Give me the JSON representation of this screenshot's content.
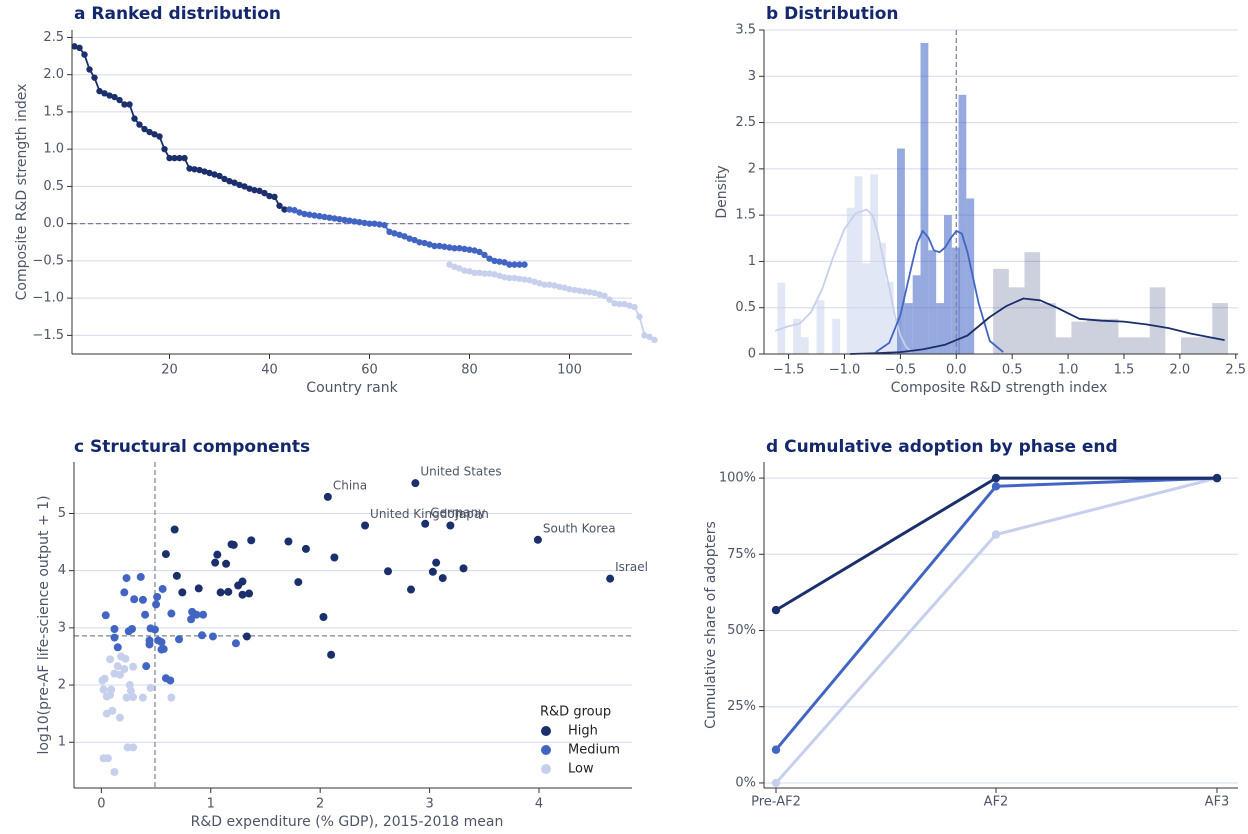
{
  "colors": {
    "high": "#1a2f6b",
    "medium": "#4265c4",
    "low": "#c6d0ec",
    "grid": "#d4d8ee",
    "refline": "#7c8092",
    "title": "#13286d",
    "text": "#4d5566"
  },
  "titles": {
    "a": "a  Ranked distribution",
    "b": "b  Distribution",
    "c": "c  Structural components",
    "d": "d  Cumulative adoption by phase end"
  },
  "chart_data": [
    {
      "panel": "a",
      "type": "line",
      "title": "a  Ranked distribution",
      "xlabel": "Country rank",
      "ylabel": "Composite R&D strength index",
      "xlim": [
        0.5,
        112.5
      ],
      "ylim": [
        -1.75,
        2.6
      ],
      "xticks": [
        20,
        40,
        60,
        80,
        100
      ],
      "yticks": [
        -1.5,
        -1.0,
        -0.5,
        0.0,
        0.5,
        1.0,
        1.5,
        2.0,
        2.5
      ],
      "ytick_labels": [
        "−1.5",
        "−1.0",
        "−0.5",
        "0.0",
        "0.5",
        "1.0",
        "1.5",
        "2.0",
        "2.5"
      ],
      "reference_y": 0,
      "grid": "horizontal",
      "series": [
        {
          "group": "high",
          "x_start": 1,
          "values": [
            2.38,
            2.36,
            2.27,
            2.07,
            1.96,
            1.78,
            1.75,
            1.72,
            1.7,
            1.66,
            1.6,
            1.6,
            1.41,
            1.33,
            1.27,
            1.23,
            1.2,
            1.17,
            1.0,
            0.88,
            0.88,
            0.88,
            0.88,
            0.74,
            0.73,
            0.72,
            0.7,
            0.68,
            0.66,
            0.64,
            0.6,
            0.57,
            0.55,
            0.52,
            0.5,
            0.47,
            0.45,
            0.44,
            0.41,
            0.37,
            0.36,
            0.24,
            0.19
          ]
        },
        {
          "group": "medium",
          "x_start": 44,
          "values": [
            0.19,
            0.18,
            0.15,
            0.13,
            0.12,
            0.11,
            0.1,
            0.09,
            0.08,
            0.07,
            0.06,
            0.05,
            0.04,
            0.03,
            0.02,
            0.01,
            0.0,
            0.0,
            -0.01,
            -0.02,
            -0.11,
            -0.13,
            -0.15,
            -0.17,
            -0.2,
            -0.22,
            -0.25,
            -0.26,
            -0.28,
            -0.3,
            -0.3,
            -0.31,
            -0.32,
            -0.33,
            -0.33,
            -0.34,
            -0.35,
            -0.36,
            -0.38,
            -0.42,
            -0.47,
            -0.5,
            -0.51,
            -0.52,
            -0.55,
            -0.55,
            -0.55,
            -0.55
          ]
        },
        {
          "group": "low",
          "x_start": 76,
          "values": [
            -0.55,
            -0.58,
            -0.6,
            -0.63,
            -0.64,
            -0.66,
            -0.66,
            -0.67,
            -0.67,
            -0.68,
            -0.7,
            -0.72,
            -0.73,
            -0.73,
            -0.74,
            -0.75,
            -0.76,
            -0.78,
            -0.8,
            -0.82,
            -0.82,
            -0.83,
            -0.85,
            -0.86,
            -0.88,
            -0.89,
            -0.9,
            -0.91,
            -0.92,
            -0.93,
            -0.95,
            -0.97,
            -1.02,
            -1.07,
            -1.08,
            -1.08,
            -1.1,
            -1.12,
            -1.25,
            -1.5,
            -1.52,
            -1.56
          ]
        }
      ]
    },
    {
      "panel": "b",
      "type": "bar",
      "title": "b  Distribution",
      "xlabel": "Composite R&D strength index",
      "ylabel": "Density",
      "xlim": [
        -1.72,
        2.52
      ],
      "ylim": [
        0,
        3.5
      ],
      "xticks": [
        -1.5,
        -1.0,
        -0.5,
        0.0,
        0.5,
        1.0,
        1.5,
        2.0,
        2.5
      ],
      "xtick_labels": [
        "−1.5",
        "−1.0",
        "−0.5",
        "0.0",
        "0.5",
        "1.0",
        "1.5",
        "2.0",
        "2.5"
      ],
      "yticks": [
        0.0,
        0.5,
        1.0,
        1.5,
        2.0,
        2.5,
        3.0,
        3.5
      ],
      "reference_x": 0,
      "grid": "horizontal",
      "histograms": [
        {
          "group": "low",
          "bin_width": 0.07,
          "bars": [
            [
              -1.6,
              0.77
            ],
            [
              -1.46,
              0.38
            ],
            [
              -1.39,
              0.18
            ],
            [
              -1.25,
              0.58
            ],
            [
              -1.11,
              0.38
            ],
            [
              -0.98,
              1.58
            ],
            [
              -0.91,
              1.92
            ],
            [
              -0.84,
              0.98
            ],
            [
              -0.77,
              1.94
            ],
            [
              -0.7,
              1.2
            ],
            [
              -0.63,
              0.78
            ],
            [
              -0.56,
              0.38
            ]
          ]
        },
        {
          "group": "medium",
          "bin_width": 0.07,
          "bars": [
            [
              -0.53,
              2.22
            ],
            [
              -0.46,
              0.55
            ],
            [
              -0.39,
              0.85
            ],
            [
              -0.32,
              3.36
            ],
            [
              -0.25,
              1.12
            ],
            [
              -0.18,
              0.55
            ],
            [
              -0.11,
              1.5
            ],
            [
              -0.04,
              1.15
            ],
            [
              0.02,
              2.8
            ],
            [
              0.09,
              1.68
            ]
          ]
        },
        {
          "group": "high",
          "bin_width": 0.14,
          "bars": [
            [
              0.33,
              0.92
            ],
            [
              0.47,
              0.72
            ],
            [
              0.61,
              1.1
            ],
            [
              0.75,
              0.55
            ],
            [
              0.89,
              0.18
            ],
            [
              1.03,
              0.35
            ],
            [
              1.17,
              0.38
            ],
            [
              1.31,
              0.38
            ],
            [
              1.45,
              0.18
            ],
            [
              1.59,
              0.18
            ],
            [
              1.73,
              0.72
            ],
            [
              2.01,
              0.18
            ],
            [
              2.15,
              0.18
            ],
            [
              2.29,
              0.55
            ]
          ]
        }
      ],
      "kde": [
        {
          "group": "low",
          "x": [
            -1.62,
            -1.5,
            -1.4,
            -1.3,
            -1.2,
            -1.1,
            -1.0,
            -0.9,
            -0.8,
            -0.75,
            -0.7,
            -0.6,
            -0.55,
            -0.5,
            -0.45,
            -0.4
          ],
          "y": [
            0.25,
            0.3,
            0.33,
            0.45,
            0.7,
            1.05,
            1.35,
            1.52,
            1.56,
            1.5,
            1.3,
            0.72,
            0.42,
            0.2,
            0.08,
            0.02
          ]
        },
        {
          "group": "medium",
          "x": [
            -0.72,
            -0.6,
            -0.5,
            -0.4,
            -0.35,
            -0.3,
            -0.25,
            -0.2,
            -0.15,
            -0.1,
            -0.05,
            0.0,
            0.05,
            0.1,
            0.2,
            0.3,
            0.42
          ],
          "y": [
            0.02,
            0.12,
            0.42,
            0.95,
            1.2,
            1.33,
            1.26,
            1.12,
            1.1,
            1.15,
            1.25,
            1.33,
            1.3,
            1.1,
            0.55,
            0.14,
            0.02
          ]
        },
        {
          "group": "high",
          "x": [
            -0.95,
            -0.7,
            -0.5,
            -0.3,
            -0.1,
            0.1,
            0.3,
            0.45,
            0.6,
            0.75,
            0.9,
            1.1,
            1.3,
            1.5,
            1.7,
            1.9,
            2.1,
            2.4
          ],
          "y": [
            0.0,
            0.01,
            0.02,
            0.05,
            0.1,
            0.2,
            0.4,
            0.52,
            0.6,
            0.58,
            0.5,
            0.38,
            0.36,
            0.35,
            0.32,
            0.28,
            0.22,
            0.15
          ]
        }
      ]
    },
    {
      "panel": "c",
      "type": "scatter",
      "title": "c  Structural components",
      "xlabel": "R&D expenditure (% GDP), 2015-2018 mean",
      "ylabel": "log10(pre-AF life-science output + 1)",
      "xlim": [
        -0.25,
        4.85
      ],
      "ylim": [
        0.2,
        5.9
      ],
      "xticks": [
        0,
        1,
        2,
        3,
        4
      ],
      "yticks": [
        1,
        2,
        3,
        4,
        5
      ],
      "reference_x": 0.49,
      "reference_y": 2.86,
      "grid": "horizontal",
      "legend": {
        "title": "R&D group",
        "placement": "lower-right",
        "entries": [
          {
            "group": "high",
            "label": "High"
          },
          {
            "group": "medium",
            "label": "Medium"
          },
          {
            "group": "low",
            "label": "Low"
          }
        ]
      },
      "annotations": [
        {
          "text": "United States",
          "x": 2.87,
          "y": 5.53
        },
        {
          "text": "China",
          "x": 2.07,
          "y": 5.29
        },
        {
          "text": "United Kingdom",
          "x": 2.41,
          "y": 4.79
        },
        {
          "text": "Germany",
          "x": 2.96,
          "y": 4.82
        },
        {
          "text": "Japan",
          "x": 3.19,
          "y": 4.79
        },
        {
          "text": "South Korea",
          "x": 3.99,
          "y": 4.54
        },
        {
          "text": "Israel",
          "x": 4.65,
          "y": 3.86
        }
      ],
      "series": [
        {
          "group": "high",
          "points": [
            [
              2.87,
              5.53
            ],
            [
              2.07,
              5.29
            ],
            [
              2.41,
              4.79
            ],
            [
              2.96,
              4.82
            ],
            [
              3.19,
              4.79
            ],
            [
              3.99,
              4.54
            ],
            [
              4.65,
              3.86
            ],
            [
              0.67,
              4.72
            ],
            [
              0.59,
              4.29
            ],
            [
              1.37,
              4.53
            ],
            [
              1.21,
              4.45
            ],
            [
              1.19,
              4.46
            ],
            [
              1.71,
              4.51
            ],
            [
              1.87,
              4.38
            ],
            [
              2.13,
              4.23
            ],
            [
              1.06,
              4.28
            ],
            [
              1.04,
              4.14
            ],
            [
              1.14,
              4.12
            ],
            [
              0.69,
              3.91
            ],
            [
              0.89,
              3.69
            ],
            [
              0.74,
              3.62
            ],
            [
              1.09,
              3.62
            ],
            [
              1.16,
              3.63
            ],
            [
              1.25,
              3.74
            ],
            [
              1.29,
              3.81
            ],
            [
              1.29,
              3.58
            ],
            [
              1.35,
              3.6
            ],
            [
              1.8,
              3.8
            ],
            [
              2.62,
              3.99
            ],
            [
              2.83,
              3.67
            ],
            [
              3.03,
              3.98
            ],
            [
              3.06,
              4.14
            ],
            [
              3.12,
              3.87
            ],
            [
              3.31,
              4.04
            ],
            [
              2.03,
              3.19
            ],
            [
              1.33,
              2.85
            ],
            [
              2.1,
              2.53
            ]
          ]
        },
        {
          "group": "medium",
          "points": [
            [
              0.04,
              3.22
            ],
            [
              0.12,
              2.98
            ],
            [
              0.12,
              2.83
            ],
            [
              0.15,
              2.66
            ],
            [
              0.23,
              3.87
            ],
            [
              0.21,
              3.62
            ],
            [
              0.3,
              3.5
            ],
            [
              0.36,
              3.89
            ],
            [
              0.38,
              3.49
            ],
            [
              0.4,
              3.23
            ],
            [
              0.25,
              2.94
            ],
            [
              0.28,
              2.98
            ],
            [
              0.45,
              2.99
            ],
            [
              0.49,
              2.97
            ],
            [
              0.44,
              2.78
            ],
            [
              0.44,
              2.71
            ],
            [
              0.41,
              2.33
            ],
            [
              0.5,
              3.41
            ],
            [
              0.51,
              3.54
            ],
            [
              0.56,
              3.68
            ],
            [
              0.52,
              2.78
            ],
            [
              0.55,
              2.75
            ],
            [
              0.55,
              2.62
            ],
            [
              0.57,
              2.63
            ],
            [
              0.64,
              3.25
            ],
            [
              0.59,
              2.12
            ],
            [
              0.63,
              2.08
            ],
            [
              0.71,
              2.8
            ],
            [
              0.82,
              3.15
            ],
            [
              0.83,
              3.28
            ],
            [
              0.87,
              3.23
            ],
            [
              0.93,
              3.23
            ],
            [
              0.92,
              2.87
            ],
            [
              1.02,
              2.85
            ],
            [
              1.23,
              2.73
            ]
          ]
        },
        {
          "group": "low",
          "points": [
            [
              0.01,
              2.08
            ],
            [
              0.03,
              2.11
            ],
            [
              0.02,
              1.92
            ],
            [
              0.05,
              1.8
            ],
            [
              0.08,
              1.83
            ],
            [
              0.09,
              1.92
            ],
            [
              0.12,
              2.2
            ],
            [
              0.17,
              2.18
            ],
            [
              0.15,
              2.33
            ],
            [
              0.18,
              2.5
            ],
            [
              0.21,
              2.28
            ],
            [
              0.22,
              2.46
            ],
            [
              0.08,
              2.45
            ],
            [
              0.05,
              1.5
            ],
            [
              0.1,
              1.55
            ],
            [
              0.17,
              1.43
            ],
            [
              0.23,
              1.78
            ],
            [
              0.27,
              1.9
            ],
            [
              0.29,
              1.79
            ],
            [
              0.26,
              2.0
            ],
            [
              0.29,
              2.32
            ],
            [
              0.38,
              1.78
            ],
            [
              0.45,
              1.95
            ],
            [
              0.64,
              1.78
            ],
            [
              0.02,
              0.72
            ],
            [
              0.06,
              0.72
            ],
            [
              0.12,
              0.48
            ],
            [
              0.24,
              0.91
            ],
            [
              0.29,
              0.91
            ]
          ]
        }
      ]
    },
    {
      "panel": "d",
      "type": "line",
      "title": "d  Cumulative adoption by phase end",
      "ylabel": "Cumulative share of adopters",
      "categories": [
        "Pre-AF2",
        "AF2",
        "AF3"
      ],
      "yticks": [
        0,
        25,
        50,
        75,
        100
      ],
      "ytick_labels": [
        "0%",
        "25%",
        "50%",
        "75%",
        "100%"
      ],
      "ylim": [
        -1,
        102
      ],
      "grid": "horizontal",
      "series": [
        {
          "group": "high",
          "values": [
            56.7,
            100,
            100
          ]
        },
        {
          "group": "medium",
          "values": [
            10.9,
            97.3,
            100
          ]
        },
        {
          "group": "low",
          "values": [
            0,
            81.5,
            100
          ]
        }
      ]
    }
  ]
}
